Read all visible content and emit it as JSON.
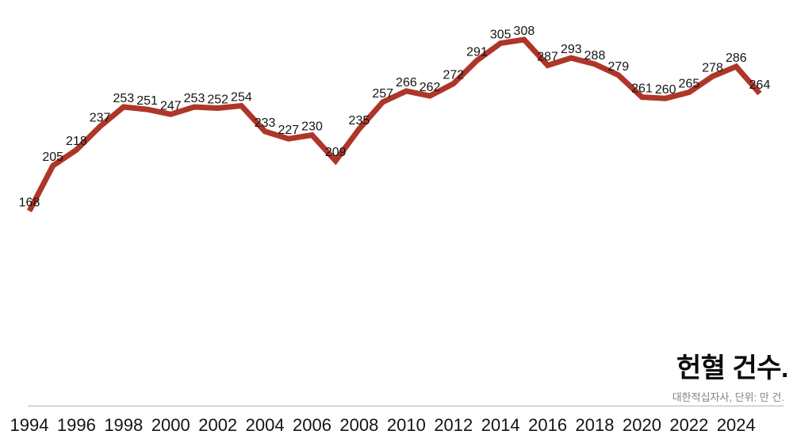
{
  "header": {
    "title": "헌혈 건수.",
    "source": "대한적십자사, 단위: 만 건."
  },
  "chart_data": {
    "type": "line",
    "title": "헌혈 건수.",
    "source_note": "대한적십자사, 단위: 만 건.",
    "unit": "만 건",
    "series_name": "헌혈 건수",
    "x": [
      1994,
      1995,
      1996,
      1997,
      1998,
      1999,
      2000,
      2001,
      2002,
      2003,
      2004,
      2005,
      2006,
      2007,
      2008,
      2009,
      2010,
      2011,
      2012,
      2013,
      2014,
      2015,
      2016,
      2017,
      2018,
      2019,
      2020,
      2021,
      2022,
      2023,
      2024,
      2025
    ],
    "values": [
      168,
      205,
      218,
      237,
      253,
      251,
      247,
      253,
      252,
      254,
      233,
      227,
      230,
      209,
      235,
      257,
      266,
      262,
      272,
      291,
      305,
      308,
      287,
      293,
      288,
      279,
      261,
      260,
      265,
      278,
      286,
      264
    ],
    "x_ticks": [
      1994,
      1996,
      1998,
      2000,
      2002,
      2004,
      2006,
      2008,
      2010,
      2012,
      2014,
      2016,
      2018,
      2020,
      2022,
      2024
    ],
    "ylim": [
      160,
      315
    ],
    "grid": false,
    "legend": "none",
    "data_labels": true,
    "line_color": "#AE3629",
    "label_color": "#141414",
    "axis_line_color": "#b3b3b3"
  }
}
